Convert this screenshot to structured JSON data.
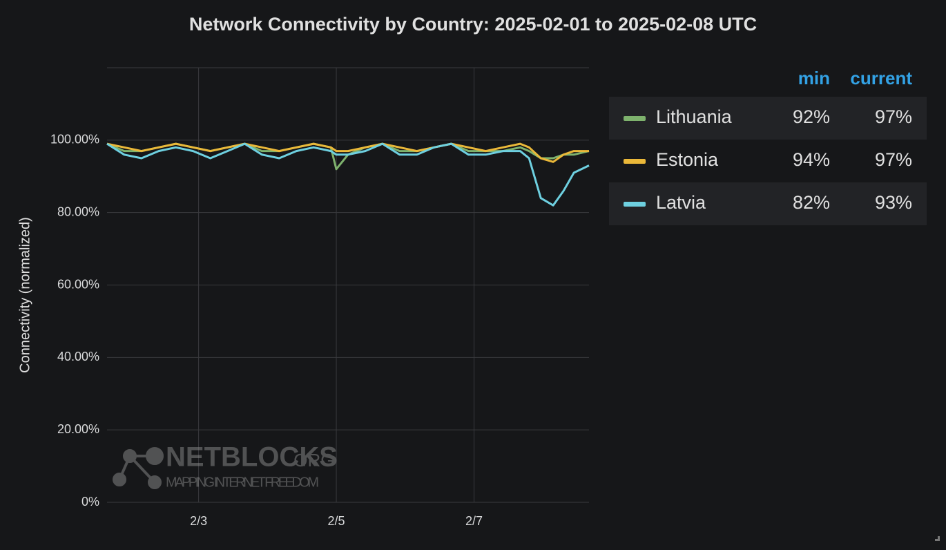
{
  "chart_data": {
    "type": "line",
    "title": "Network Connectivity by Country: 2025-02-01 to 2025-02-08 UTC",
    "y_label": "Connectivity (normalized)",
    "x": [
      1.67,
      1.92,
      2.17,
      2.42,
      2.67,
      2.92,
      3.17,
      3.42,
      3.67,
      3.92,
      4.17,
      4.42,
      4.67,
      4.92,
      5.0,
      5.17,
      5.42,
      5.67,
      5.92,
      6.17,
      6.42,
      6.67,
      6.92,
      7.17,
      7.42,
      7.67,
      7.8,
      7.97,
      8.15,
      8.3,
      8.45,
      8.67
    ],
    "xlim": [
      1.67,
      8.67
    ],
    "xticks": [
      {
        "value": 3,
        "label": "2/3"
      },
      {
        "value": 5,
        "label": "2/5"
      },
      {
        "value": 7,
        "label": "2/7"
      }
    ],
    "ylim": [
      0,
      120
    ],
    "yticks": [
      {
        "value": 0,
        "label": "0%"
      },
      {
        "value": 20,
        "label": "20.00%"
      },
      {
        "value": 40,
        "label": "40.00%"
      },
      {
        "value": 60,
        "label": "60.00%"
      },
      {
        "value": 80,
        "label": "80.00%"
      },
      {
        "value": 100,
        "label": "100.00%"
      }
    ],
    "grid": true,
    "legend_columns": [
      "min",
      "current"
    ],
    "series": [
      {
        "name": "Lithuania",
        "color": "#7eb26d",
        "legend_values": [
          "92%",
          "97%"
        ],
        "values": [
          99,
          97,
          97,
          98,
          99,
          98,
          97,
          98,
          99,
          97,
          97,
          98,
          99,
          98,
          92,
          96,
          98,
          99,
          97,
          97,
          98,
          99,
          97,
          97,
          97,
          98,
          97,
          95,
          95,
          96,
          96,
          97
        ]
      },
      {
        "name": "Estonia",
        "color": "#eab839",
        "legend_values": [
          "94%",
          "97%"
        ],
        "values": [
          99,
          98,
          97,
          98,
          99,
          98,
          97,
          98,
          99,
          98,
          97,
          98,
          99,
          98,
          97,
          97,
          98,
          99,
          98,
          97,
          98,
          99,
          98,
          97,
          98,
          99,
          98,
          95,
          94,
          96,
          97,
          97
        ]
      },
      {
        "name": "Latvia",
        "color": "#6ed0e0",
        "legend_values": [
          "82%",
          "93%"
        ],
        "values": [
          99,
          96,
          95,
          97,
          98,
          97,
          95,
          97,
          99,
          96,
          95,
          97,
          98,
          97,
          96,
          96,
          97,
          99,
          96,
          96,
          98,
          99,
          96,
          96,
          97,
          97,
          95,
          84,
          82,
          86,
          91,
          93
        ]
      }
    ],
    "watermark": {
      "brand": "NETBLOCKS",
      "suffix": ".ORG",
      "tagline": "MAPPING INTERNET FREEDOM"
    }
  }
}
